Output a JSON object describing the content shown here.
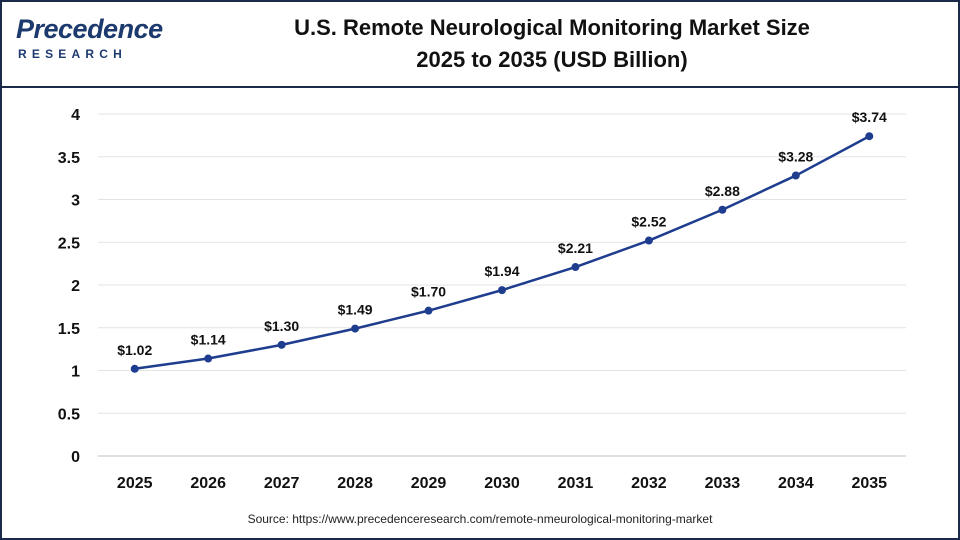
{
  "header": {
    "logo_top": "Precedence",
    "logo_bottom": "RESEARCH",
    "title_line1": "U.S. Remote Neurological Monitoring Market Size",
    "title_line2": "2025 to 2035 (USD Billion)"
  },
  "footer": {
    "source": "Source: https://www.precedenceresearch.com/remote-nmeurological-monitoring-market"
  },
  "colors": {
    "line": "#1f3d8f",
    "grid": "#e3e3e3",
    "brand": "#1d3a6e"
  },
  "chart_data": {
    "type": "line",
    "title": "U.S. Remote Neurological Monitoring Market Size 2025 to 2035 (USD Billion)",
    "xlabel": "",
    "ylabel": "",
    "categories": [
      "2025",
      "2026",
      "2027",
      "2028",
      "2029",
      "2030",
      "2031",
      "2032",
      "2033",
      "2034",
      "2035"
    ],
    "values": [
      1.02,
      1.14,
      1.3,
      1.49,
      1.7,
      1.94,
      2.21,
      2.52,
      2.88,
      3.28,
      3.74
    ],
    "data_labels": [
      "$1.02",
      "$1.14",
      "$1.30",
      "$1.49",
      "$1.70",
      "$1.94",
      "$2.21",
      "$2.52",
      "$2.88",
      "$3.28",
      "$3.74"
    ],
    "ylim": [
      0,
      4
    ],
    "yticks": [
      "0",
      "0.5",
      "1",
      "1.5",
      "2",
      "2.5",
      "3",
      "3.5",
      "4"
    ],
    "ytick_values": [
      0,
      0.5,
      1,
      1.5,
      2,
      2.5,
      3,
      3.5,
      4
    ],
    "grid": true,
    "legend": "none"
  }
}
